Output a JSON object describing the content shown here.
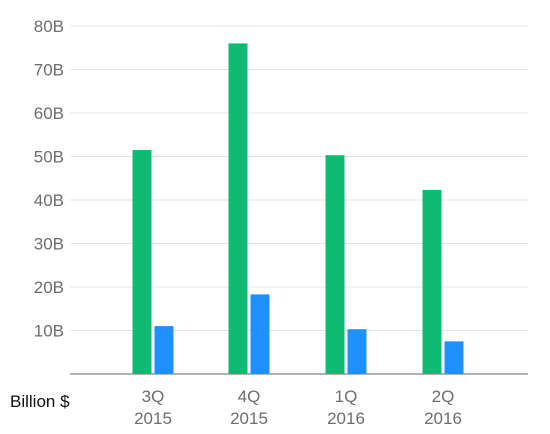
{
  "chart_data": {
    "type": "bar",
    "unit_label": "Billion $",
    "categories": [
      {
        "line1": "3Q",
        "line2": "2015"
      },
      {
        "line1": "4Q",
        "line2": "2015"
      },
      {
        "line1": "1Q",
        "line2": "2016"
      },
      {
        "line1": "2Q",
        "line2": "2016"
      }
    ],
    "series": [
      {
        "values": [
          51.5,
          76.0,
          50.3,
          42.3
        ],
        "color": "#0dbb72"
      },
      {
        "values": [
          11.0,
          18.3,
          10.3,
          7.5
        ],
        "color": "#1e90ff"
      }
    ],
    "yticks": [
      "10B",
      "20B",
      "30B",
      "40B",
      "50B",
      "60B",
      "70B",
      "80B"
    ],
    "ytick_values": [
      10,
      20,
      30,
      40,
      50,
      60,
      70,
      80
    ],
    "ylim": [
      0,
      80
    ],
    "grid": true
  }
}
